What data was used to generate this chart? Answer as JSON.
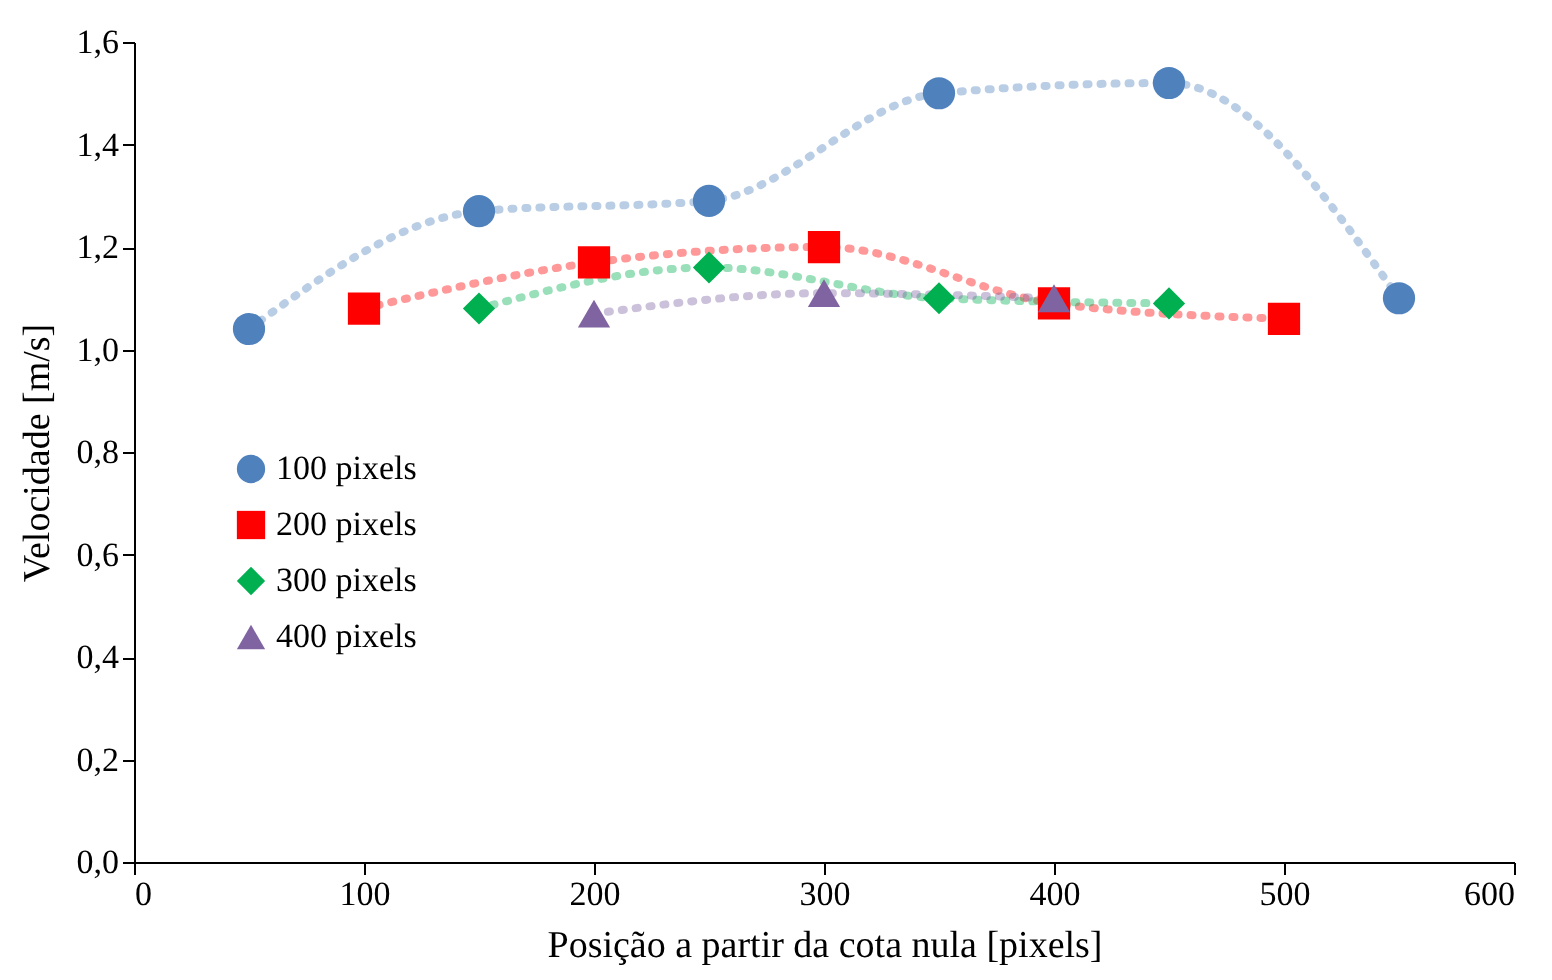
{
  "chart_data": {
    "type": "line",
    "xlabel": "Posição a partir da cota nula [pixels]",
    "ylabel": "Velocidade [m/s]",
    "xlim": [
      0,
      600
    ],
    "xticks": [
      0,
      100,
      200,
      300,
      400,
      500,
      600
    ],
    "ylim": [
      0,
      1.6
    ],
    "yticks": [
      {
        "value": 0,
        "label": "0,0"
      },
      {
        "value": 0.2,
        "label": "0,2"
      },
      {
        "value": 0.4,
        "label": "0,4"
      },
      {
        "value": 0.6,
        "label": "0,6"
      },
      {
        "value": 0.8,
        "label": "0,8"
      },
      {
        "value": 1.0,
        "label": "1,0"
      },
      {
        "value": 1.2,
        "label": "1,2"
      },
      {
        "value": 1.4,
        "label": "1,4"
      },
      {
        "value": 1.6,
        "label": "1,6"
      }
    ],
    "grid": false,
    "legend": "left",
    "line_style": "dotted",
    "series": [
      {
        "name": "100 pixels",
        "color": "#4f81bd",
        "marker": "circle",
        "x": [
          50,
          150,
          250,
          350,
          450,
          550
        ],
        "values": [
          1.04,
          1.27,
          1.29,
          1.5,
          1.52,
          1.1
        ]
      },
      {
        "name": "200 pixels",
        "color": "#ff0000",
        "marker": "square",
        "x": [
          100,
          200,
          300,
          400,
          500
        ],
        "values": [
          1.08,
          1.17,
          1.2,
          1.09,
          1.06
        ]
      },
      {
        "name": "300 pixels",
        "color": "#00b050",
        "marker": "diamond",
        "x": [
          150,
          250,
          350,
          450
        ],
        "values": [
          1.08,
          1.16,
          1.1,
          1.09
        ]
      },
      {
        "name": "400 pixels",
        "color": "#8064a2",
        "marker": "triangle",
        "x": [
          200,
          300,
          400
        ],
        "values": [
          1.07,
          1.11,
          1.1
        ]
      }
    ]
  }
}
